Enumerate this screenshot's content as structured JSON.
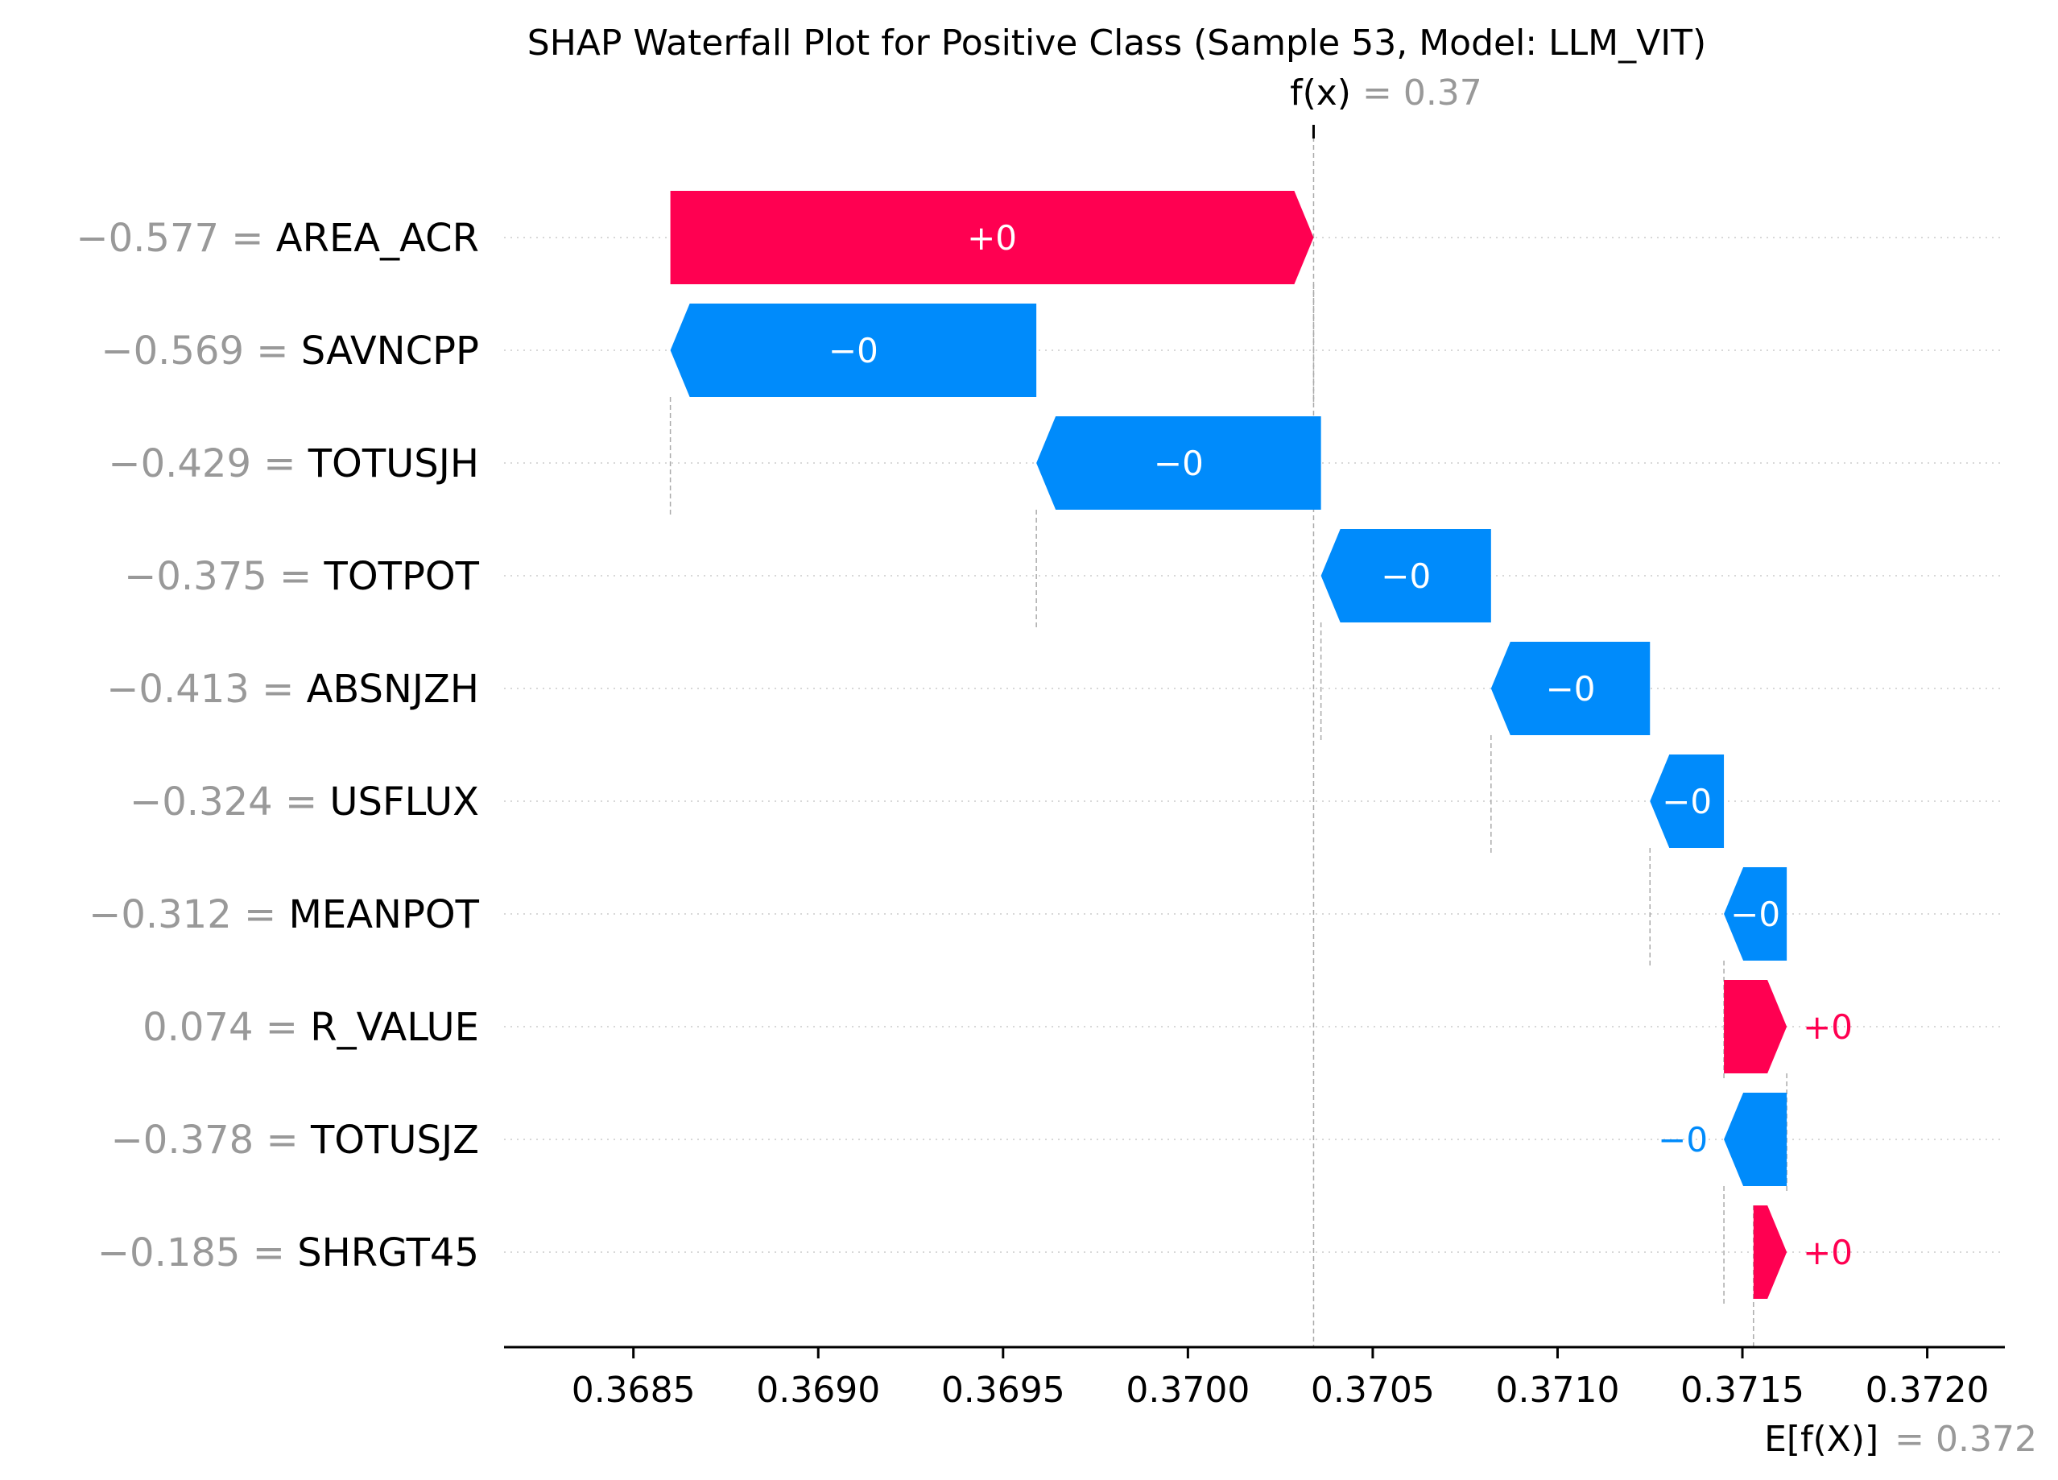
{
  "chart_data": {
    "type": "waterfall",
    "title": "SHAP Waterfall Plot for Positive Class (Sample 53, Model: LLM_VIT)",
    "fx_symbol": "f(x)",
    "fx_value": "= 0.37",
    "fx": 0.37034,
    "efx_symbol": "E[f(X)]",
    "efx_value": "= 0.372",
    "efx": 0.37153,
    "xlim": [
      0.36815,
      0.37221
    ],
    "xticks": [
      0.3685,
      0.369,
      0.3695,
      0.37,
      0.3705,
      0.371,
      0.3715,
      0.372
    ],
    "xtick_labels": [
      "0.3685",
      "0.3690",
      "0.3695",
      "0.3700",
      "0.3705",
      "0.3710",
      "0.3715",
      "0.3720"
    ],
    "positive_color": "#ff0051",
    "negative_color": "#008bfb",
    "features": [
      {
        "value": "−0.577",
        "name": "AREA_ACR",
        "start": 0.3686,
        "end": 0.37034,
        "label": "+0",
        "label_inside": true
      },
      {
        "value": "−0.569",
        "name": "SAVNCPP",
        "start": 0.36959,
        "end": 0.3686,
        "label": "−0",
        "label_inside": true
      },
      {
        "value": "−0.429",
        "name": "TOTUSJH",
        "start": 0.37036,
        "end": 0.36959,
        "label": "−0",
        "label_inside": true
      },
      {
        "value": "−0.375",
        "name": "TOTPOT",
        "start": 0.37082,
        "end": 0.37036,
        "label": "−0",
        "label_inside": true
      },
      {
        "value": "−0.413",
        "name": "ABSNJZH",
        "start": 0.37125,
        "end": 0.37082,
        "label": "−0",
        "label_inside": true
      },
      {
        "value": "−0.324",
        "name": "USFLUX",
        "start": 0.37145,
        "end": 0.37125,
        "label": "−0",
        "label_inside": true
      },
      {
        "value": "−0.312",
        "name": "MEANPOT",
        "start": 0.37162,
        "end": 0.37145,
        "label": "−0",
        "label_inside": true
      },
      {
        "value": "0.074",
        "name": "R_VALUE",
        "start": 0.37145,
        "end": 0.37162,
        "label": "+0",
        "label_inside": false
      },
      {
        "value": "−0.378",
        "name": "TOTUSJZ",
        "start": 0.37162,
        "end": 0.37145,
        "label": "−0",
        "label_inside": false
      },
      {
        "value": "−0.185",
        "name": "SHRGT45",
        "start": 0.37153,
        "end": 0.37162,
        "label": "+0",
        "label_inside": false
      }
    ]
  }
}
